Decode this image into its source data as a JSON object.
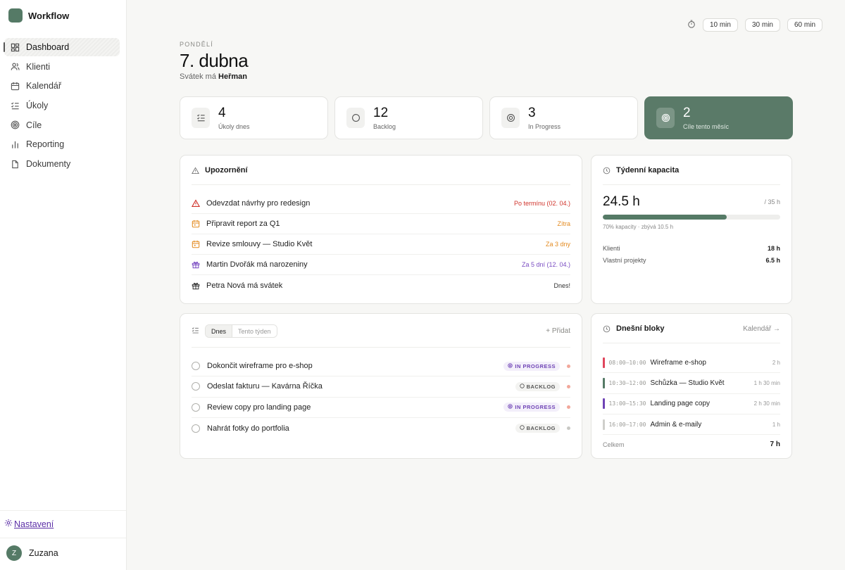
{
  "app": {
    "name": "Workflow"
  },
  "sidebar": {
    "items": [
      {
        "label": "Dashboard",
        "icon": "grid-icon",
        "active": true
      },
      {
        "label": "Klienti",
        "icon": "users-icon"
      },
      {
        "label": "Kalendář",
        "icon": "calendar-icon"
      },
      {
        "label": "Úkoly",
        "icon": "list-check-icon"
      },
      {
        "label": "Cíle",
        "icon": "target-icon"
      },
      {
        "label": "Reporting",
        "icon": "bar-chart-icon"
      },
      {
        "label": "Dokumenty",
        "icon": "file-icon"
      }
    ],
    "settings_label": "Nastavení",
    "user": {
      "initial": "Z",
      "name": "Zuzana"
    }
  },
  "timer": {
    "options": [
      "10 min",
      "30 min",
      "60 min"
    ]
  },
  "header": {
    "day": "PONDĚLÍ",
    "date": "7. dubna",
    "nameday_prefix": "Svátek má",
    "nameday_name": "Heřman"
  },
  "stats": [
    {
      "value": "4",
      "label": "Úkoly dnes",
      "icon": "list-check-icon"
    },
    {
      "value": "12",
      "label": "Backlog",
      "icon": "circle-icon"
    },
    {
      "value": "3",
      "label": "In Progress",
      "icon": "target-icon"
    },
    {
      "value": "2",
      "label": "Cíle tento měsíc",
      "icon": "target-icon"
    }
  ],
  "alerts": {
    "title": "Upozornění",
    "items": [
      {
        "text": "Odevzdat návrhy pro redesign",
        "badge": "Po termínu (02. 04.)",
        "icon": "warning-icon",
        "color": "#d0342c"
      },
      {
        "text": "Připravit report za Q1",
        "badge": "Zítra",
        "icon": "calendar-icon",
        "color": "#e38a1f"
      },
      {
        "text": "Revize smlouvy — Studio Květ",
        "badge": "Za 3 dny",
        "icon": "calendar-icon",
        "color": "#e38a1f"
      },
      {
        "text": "Martin Dvořák má narozeniny",
        "badge": "Za 5 dní (12. 04.)",
        "icon": "gift-icon",
        "color": "#7a4cc2"
      },
      {
        "text": "Petra Nová má svátek",
        "badge": "Dnes!",
        "icon": "gift-icon",
        "color": "#333333"
      }
    ]
  },
  "capacity": {
    "title": "Týdenní kapacita",
    "value": "24.5 h",
    "total": "/ 35 h",
    "percent": 70,
    "note": "70% kapacity · zbývá 10.5 h",
    "rows": [
      {
        "label": "Klienti",
        "value": "18 h"
      },
      {
        "label": "Vlastní projekty",
        "value": "6.5 h"
      }
    ]
  },
  "tasks": {
    "tabs": [
      "Dnes",
      "Tento týden"
    ],
    "add_label": "+ Přidat",
    "items": [
      {
        "text": "Dokončit wireframe pro e-shop",
        "status": "IN PROGRESS",
        "kind": "prog",
        "dot": "#f2a79a"
      },
      {
        "text": "Odeslat fakturu — Kavárna Říčka",
        "status": "BACKLOG",
        "kind": "back",
        "dot": "#f2a79a"
      },
      {
        "text": "Review copy pro landing page",
        "status": "IN PROGRESS",
        "kind": "prog",
        "dot": "#f2a79a"
      },
      {
        "text": "Nahrát fotky do portfolia",
        "status": "BACKLOG",
        "kind": "back",
        "dot": "#c8c8c4"
      }
    ]
  },
  "blocks": {
    "title": "Dnešní bloky",
    "link": "Kalendář →",
    "items": [
      {
        "time": "08:00–10:00",
        "name": "Wireframe e-shop",
        "duration": "2 h",
        "color": "#e0455c"
      },
      {
        "time": "10:30–12:00",
        "name": "Schůzka — Studio Květ",
        "duration": "1 h 30 min",
        "color": "#557a66"
      },
      {
        "time": "13:00–15:30",
        "name": "Landing page copy",
        "duration": "2 h 30 min",
        "color": "#6f43b5"
      },
      {
        "time": "16:00–17:00",
        "name": "Admin & e-maily",
        "duration": "1 h",
        "color": "#cfcfcb"
      }
    ],
    "total_label": "Celkem",
    "total_value": "7 h"
  }
}
